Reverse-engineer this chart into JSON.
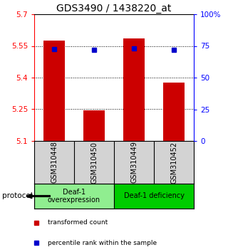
{
  "title": "GDS3490 / 1438220_at",
  "samples": [
    "GSM310448",
    "GSM310450",
    "GSM310449",
    "GSM310452"
  ],
  "bar_values": [
    5.575,
    5.245,
    5.585,
    5.375
  ],
  "dot_values": [
    5.535,
    5.53,
    5.537,
    5.53
  ],
  "ylim_left": [
    5.1,
    5.7
  ],
  "ylim_right": [
    0,
    100
  ],
  "yticks_left": [
    5.1,
    5.25,
    5.4,
    5.55,
    5.7
  ],
  "yticks_right": [
    0,
    25,
    50,
    75,
    100
  ],
  "bar_color": "#cc0000",
  "dot_color": "#0000cc",
  "bar_bottom": 5.1,
  "groups": [
    {
      "label": "Deaf-1\noverexpression",
      "samples": [
        0,
        1
      ],
      "color": "#90ee90"
    },
    {
      "label": "Deaf-1 deficiency",
      "samples": [
        2,
        3
      ],
      "color": "#00cc00"
    }
  ],
  "protocol_label": "protocol",
  "legend_bar_label": "transformed count",
  "legend_dot_label": "percentile rank within the sample",
  "title_fontsize": 10,
  "tick_fontsize": 7.5,
  "sample_label_fontsize": 7,
  "group_label_fontsize": 7,
  "legend_fontsize": 6.5
}
